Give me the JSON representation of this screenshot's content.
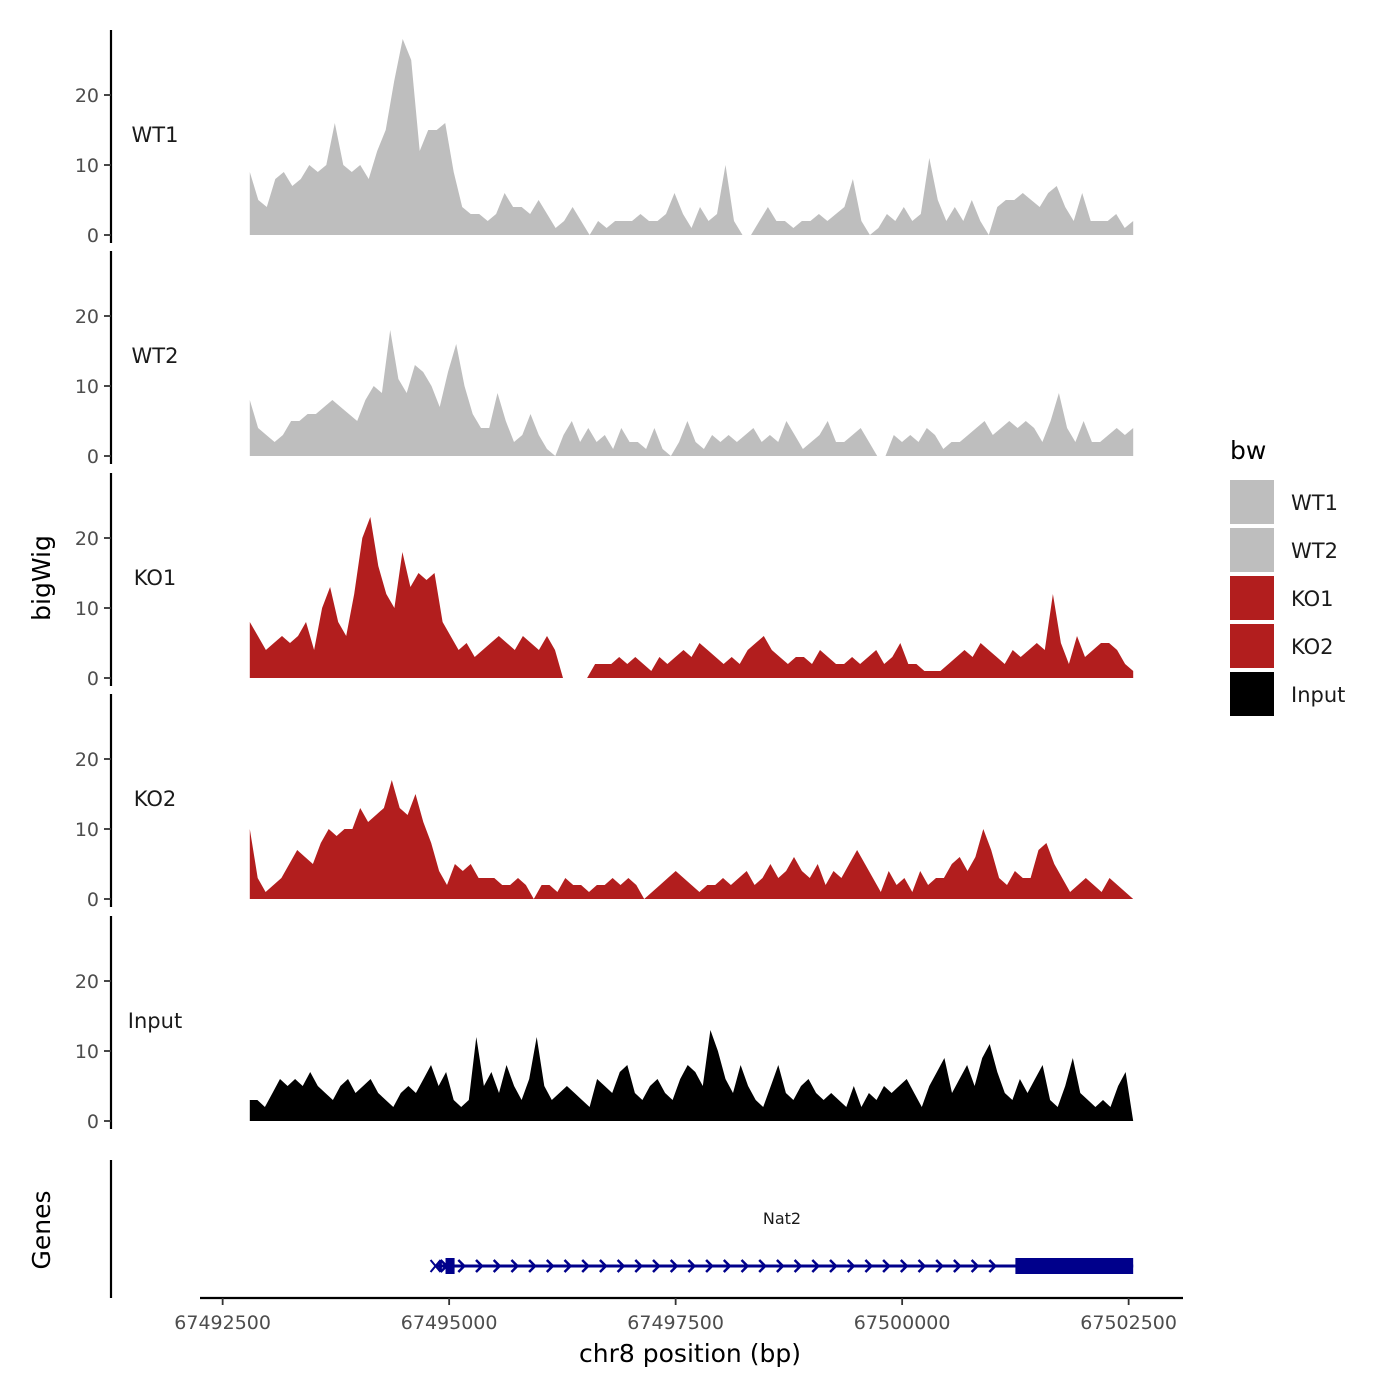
{
  "chart_data": {
    "type": "area",
    "title": "",
    "xlabel": "chr8 position (bp)",
    "ylabel": "bigWig",
    "genes_axis_label": "Genes",
    "x_range": [
      67492800,
      67502550
    ],
    "xlim": [
      67492250,
      67503100
    ],
    "x_ticks": [
      67492500,
      67495000,
      67497500,
      67500000,
      67502500
    ],
    "x_tick_labels": [
      "67492500",
      "67495000",
      "67497500",
      "67500000",
      "67502500"
    ],
    "ylim": [
      0,
      29
    ],
    "y_ticks": [
      0,
      10,
      20
    ],
    "y_tick_labels": [
      "0",
      "10",
      "20"
    ],
    "legend": {
      "title": "bw",
      "entries": [
        {
          "label": "WT1",
          "color": "#bebebe"
        },
        {
          "label": "WT2",
          "color": "#bebebe"
        },
        {
          "label": "KO1",
          "color": "#b21e1e"
        },
        {
          "label": "KO2",
          "color": "#b21e1e"
        },
        {
          "label": "Input",
          "color": "#000000"
        }
      ]
    },
    "series": [
      {
        "name": "WT1",
        "color": "#bebebe",
        "values": [
          9,
          5,
          4,
          8,
          9,
          7,
          8,
          10,
          9,
          10,
          16,
          10,
          9,
          10,
          8,
          12,
          15,
          22,
          28,
          25,
          12,
          15,
          15,
          16,
          9,
          4,
          3,
          3,
          2,
          3,
          6,
          4,
          4,
          3,
          5,
          3,
          1,
          2,
          4,
          2,
          0,
          2,
          1,
          2,
          2,
          2,
          3,
          2,
          2,
          3,
          6,
          3,
          1,
          4,
          2,
          3,
          10,
          2,
          0,
          0,
          2,
          4,
          2,
          2,
          1,
          2,
          2,
          3,
          2,
          3,
          4,
          8,
          2,
          0,
          1,
          3,
          2,
          4,
          2,
          3,
          11,
          5,
          2,
          4,
          2,
          5,
          2,
          0,
          4,
          5,
          5,
          6,
          5,
          4,
          6,
          7,
          4,
          2,
          6,
          2,
          2,
          2,
          3,
          1,
          2
        ]
      },
      {
        "name": "WT2",
        "color": "#bebebe",
        "values": [
          8,
          4,
          3,
          2,
          3,
          5,
          5,
          6,
          6,
          7,
          8,
          7,
          6,
          5,
          8,
          10,
          9,
          18,
          11,
          9,
          13,
          12,
          10,
          7,
          12,
          16,
          10,
          6,
          4,
          4,
          9,
          5,
          2,
          3,
          6,
          3,
          1,
          0,
          3,
          5,
          2,
          4,
          2,
          3,
          1,
          4,
          2,
          2,
          1,
          4,
          1,
          0,
          2,
          5,
          2,
          1,
          3,
          2,
          3,
          2,
          3,
          4,
          2,
          3,
          2,
          5,
          3,
          1,
          2,
          3,
          5,
          2,
          2,
          3,
          4,
          2,
          0,
          0,
          3,
          2,
          3,
          2,
          4,
          3,
          1,
          2,
          2,
          3,
          4,
          5,
          3,
          4,
          5,
          4,
          5,
          4,
          2,
          5,
          9,
          4,
          2,
          5,
          2,
          2,
          3,
          4,
          3,
          4
        ]
      },
      {
        "name": "KO1",
        "color": "#b21e1e",
        "values": [
          8,
          6,
          4,
          5,
          6,
          5,
          6,
          8,
          4,
          10,
          13,
          8,
          6,
          12,
          20,
          23,
          16,
          12,
          10,
          18,
          13,
          15,
          14,
          15,
          8,
          6,
          4,
          5,
          3,
          4,
          5,
          6,
          5,
          4,
          6,
          5,
          4,
          6,
          4,
          0,
          0,
          0,
          0,
          2,
          2,
          2,
          3,
          2,
          3,
          2,
          1,
          3,
          2,
          3,
          4,
          3,
          5,
          4,
          3,
          2,
          3,
          2,
          4,
          5,
          6,
          4,
          3,
          2,
          3,
          3,
          2,
          4,
          3,
          2,
          2,
          3,
          2,
          3,
          4,
          2,
          3,
          5,
          2,
          2,
          1,
          1,
          1,
          2,
          3,
          4,
          3,
          5,
          4,
          3,
          2,
          4,
          3,
          4,
          5,
          4,
          12,
          5,
          2,
          6,
          3,
          4,
          5,
          5,
          4,
          2,
          1
        ]
      },
      {
        "name": "KO2",
        "color": "#b21e1e",
        "values": [
          10,
          3,
          1,
          2,
          3,
          5,
          7,
          6,
          5,
          8,
          10,
          9,
          10,
          10,
          13,
          11,
          12,
          13,
          17,
          13,
          12,
          15,
          11,
          8,
          4,
          2,
          5,
          4,
          5,
          3,
          3,
          3,
          2,
          2,
          3,
          2,
          0,
          2,
          2,
          1,
          3,
          2,
          2,
          1,
          2,
          2,
          3,
          2,
          3,
          2,
          0,
          1,
          2,
          3,
          4,
          3,
          2,
          1,
          2,
          2,
          3,
          2,
          3,
          4,
          2,
          3,
          5,
          3,
          4,
          6,
          4,
          3,
          5,
          2,
          4,
          3,
          5,
          7,
          5,
          3,
          1,
          4,
          2,
          3,
          1,
          4,
          2,
          3,
          3,
          5,
          6,
          4,
          6,
          10,
          7,
          3,
          2,
          4,
          3,
          3,
          7,
          8,
          5,
          3,
          1,
          2,
          3,
          2,
          1,
          3,
          2,
          1,
          0
        ]
      },
      {
        "name": "Input",
        "color": "#000000",
        "values": [
          3,
          3,
          2,
          4,
          6,
          5,
          6,
          5,
          7,
          5,
          4,
          3,
          5,
          6,
          4,
          5,
          6,
          4,
          3,
          2,
          4,
          5,
          4,
          6,
          8,
          5,
          7,
          3,
          2,
          3,
          12,
          5,
          7,
          4,
          8,
          5,
          3,
          6,
          12,
          5,
          3,
          4,
          5,
          4,
          3,
          2,
          6,
          5,
          4,
          7,
          8,
          4,
          3,
          5,
          6,
          4,
          3,
          6,
          8,
          7,
          5,
          13,
          10,
          6,
          4,
          8,
          5,
          3,
          2,
          5,
          8,
          4,
          3,
          5,
          6,
          4,
          3,
          4,
          3,
          2,
          5,
          2,
          4,
          3,
          5,
          4,
          5,
          6,
          4,
          2,
          5,
          7,
          9,
          4,
          6,
          8,
          5,
          9,
          11,
          7,
          4,
          3,
          6,
          4,
          6,
          8,
          3,
          2,
          5,
          9,
          4,
          3,
          2,
          3,
          2,
          5,
          7,
          0
        ]
      }
    ],
    "gene": {
      "name": "Nat2",
      "start": 67494850,
      "end": 67502550,
      "strand": "+",
      "exons": [
        [
          67494880,
          67494920
        ],
        [
          67494960,
          67495060
        ],
        [
          67501250,
          67502550
        ]
      ],
      "color": "#00008b"
    }
  }
}
